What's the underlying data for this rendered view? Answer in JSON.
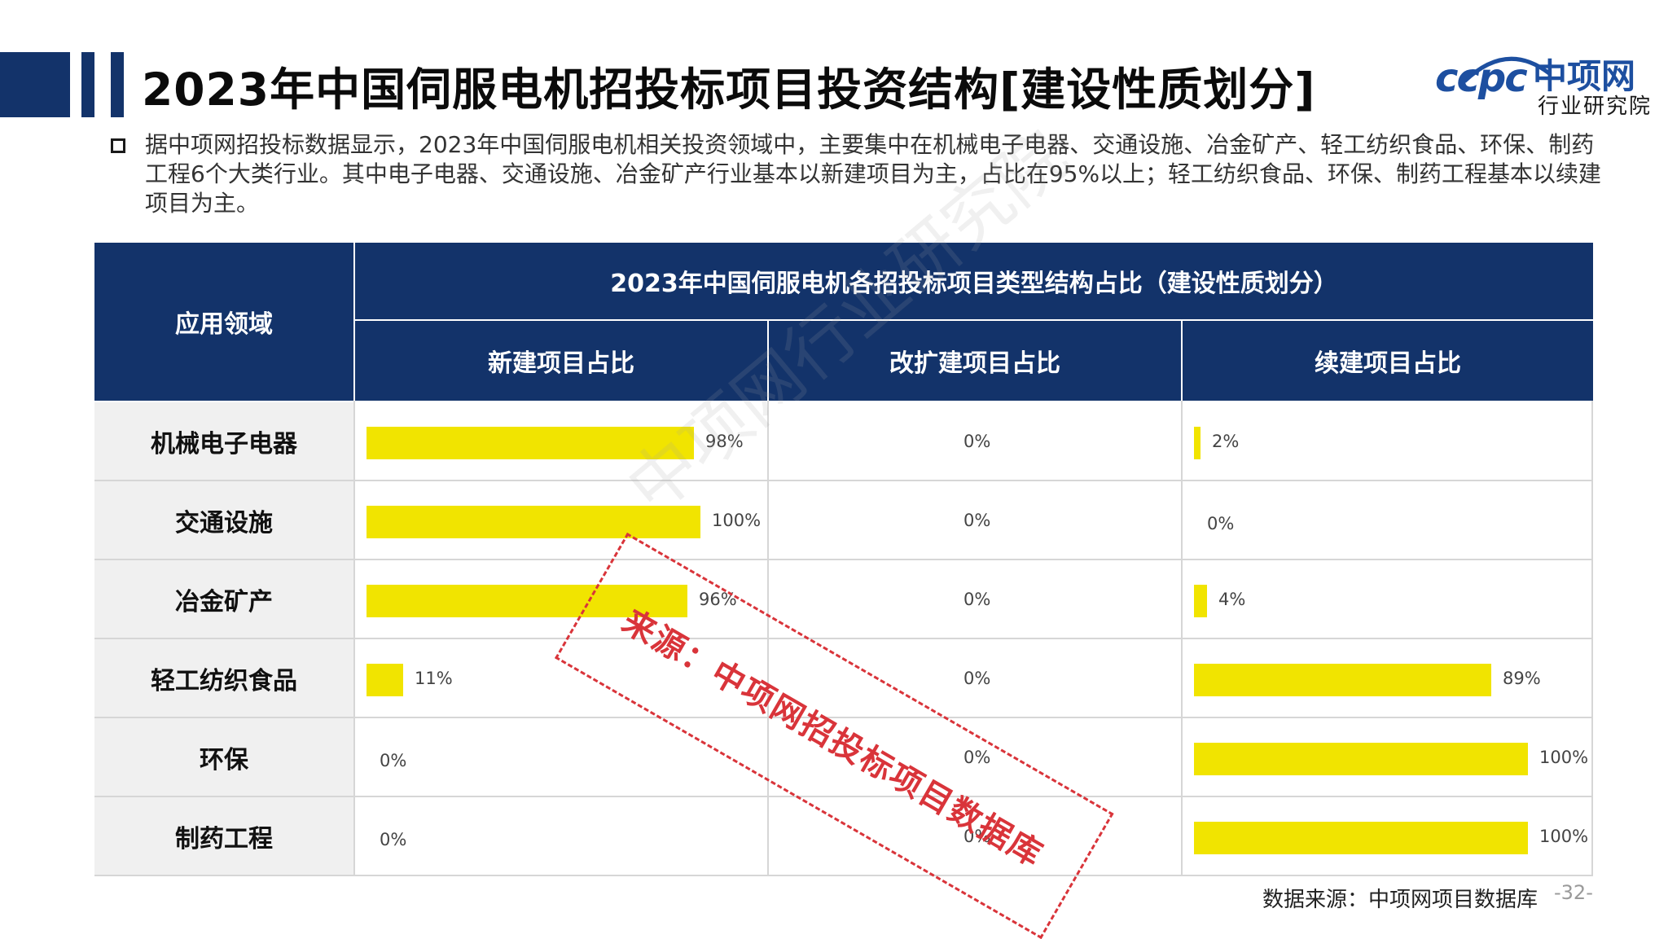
{
  "title": "2023年中国伺服电机招投标项目投资结构[建设性质划分]",
  "logo": {
    "brand": "ccpc",
    "name": "中项网",
    "subtitle": "行业研究院"
  },
  "intro": "据中项网招投标数据显示，2023年中国伺服电机相关投资领域中，主要集中在机械电子电器、交通设施、冶金矿产、轻工纺织食品、环保、制药工程6个大类行业。其中电子电器、交通设施、冶金矿产行业基本以新建项目为主，占比在95%以上；轻工纺织食品、环保、制药工程基本以续建项目为主。",
  "table": {
    "field_header": "应用领域",
    "span_header": "2023年中国伺服电机各招投标项目类型结构占比（建设性质划分）",
    "columns": [
      "新建项目占比",
      "改扩建项目占比",
      "续建项目占比"
    ],
    "rows": [
      {
        "label": "机械电子电器",
        "values": [
          98,
          0,
          2
        ],
        "texts": [
          "98%",
          "0%",
          "2%"
        ]
      },
      {
        "label": "交通设施",
        "values": [
          100,
          0,
          0
        ],
        "texts": [
          "100%",
          "0%",
          "0%"
        ]
      },
      {
        "label": "冶金矿产",
        "values": [
          96,
          0,
          4
        ],
        "texts": [
          "96%",
          "0%",
          "4%"
        ]
      },
      {
        "label": "轻工纺织食品",
        "values": [
          11,
          0,
          89
        ],
        "texts": [
          "11%",
          "0%",
          "89%"
        ]
      },
      {
        "label": "环保",
        "values": [
          0,
          0,
          100
        ],
        "texts": [
          "0%",
          "0%",
          "100%"
        ]
      },
      {
        "label": "制药工程",
        "values": [
          0,
          0,
          100
        ],
        "texts": [
          "0%",
          "0%",
          "100%"
        ]
      }
    ]
  },
  "watermark": "中项网行业研究院",
  "stamp": "来源：中项网招投标项目数据库",
  "source": "数据来源：中项网项目数据库",
  "page_number": "-32-",
  "colors": {
    "header_bg": "#13336a",
    "bar": "#f1e400",
    "stamp": "#d9343a"
  }
}
